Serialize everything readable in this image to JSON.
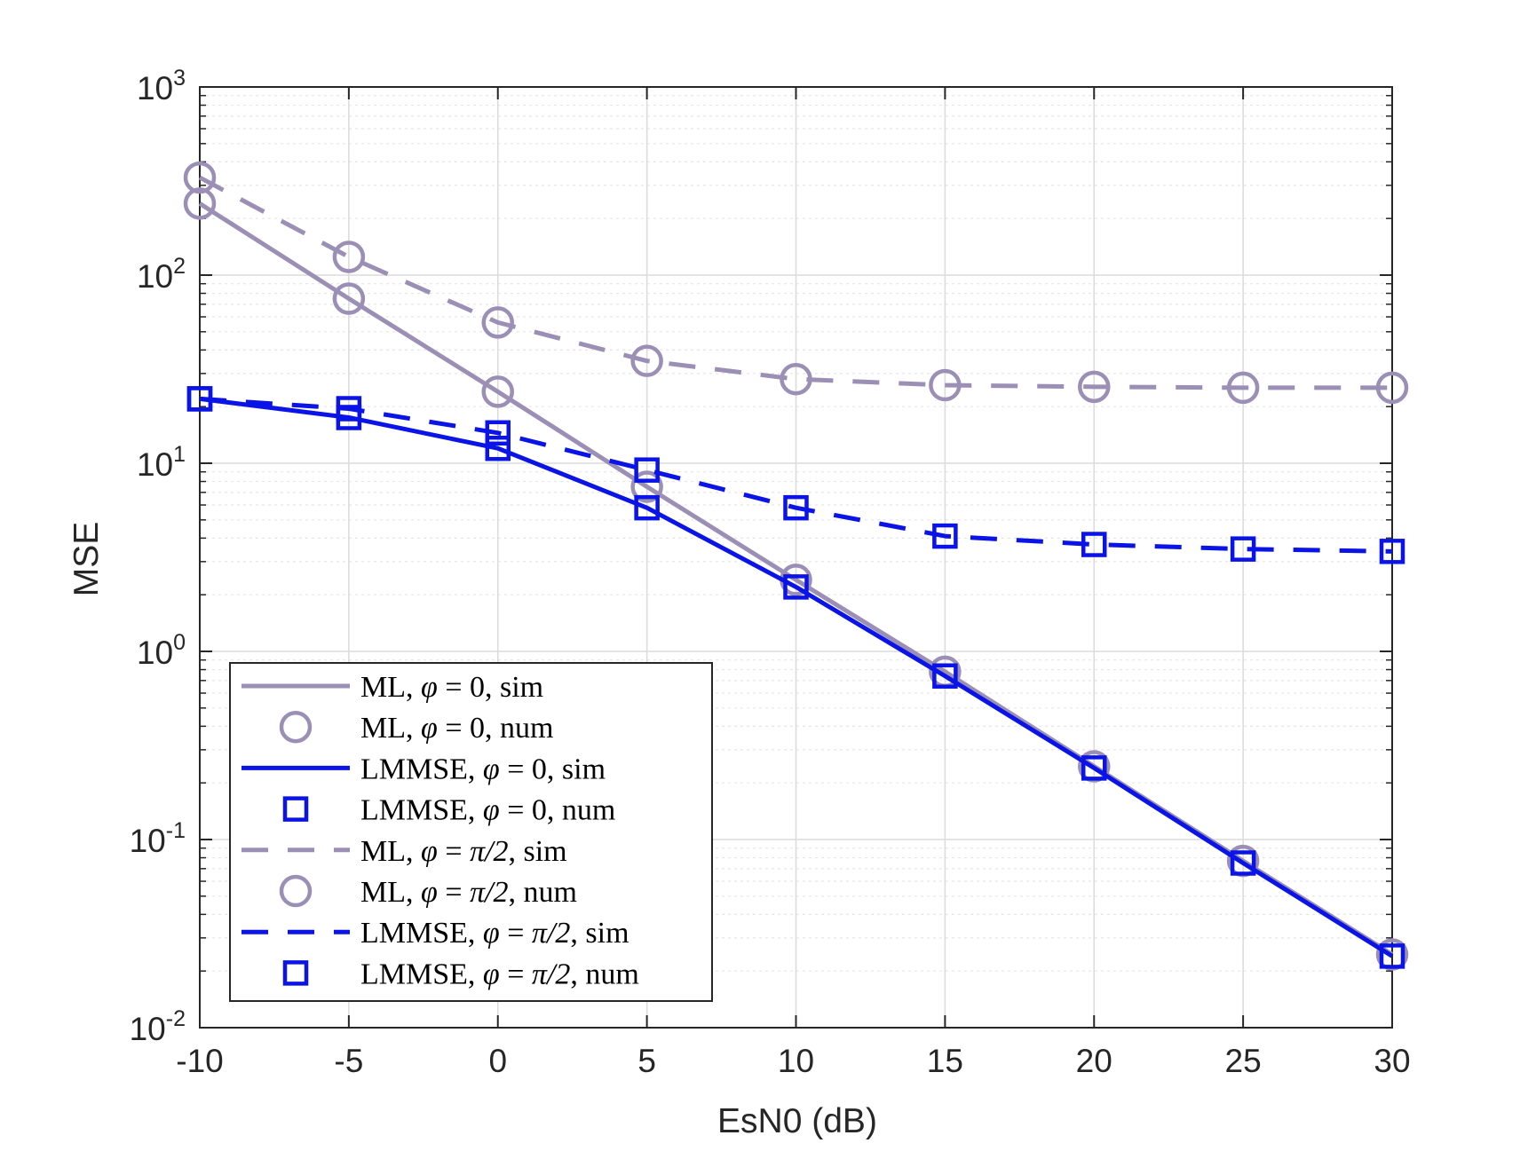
{
  "chart_data": {
    "type": "line",
    "title": "",
    "xlabel": "EsN0 (dB)",
    "ylabel": "MSE",
    "yscale": "log",
    "xlim": [
      -10,
      30
    ],
    "ylim": [
      0.01,
      1000
    ],
    "x": [
      -10,
      -5,
      0,
      5,
      10,
      15,
      20,
      25,
      30
    ],
    "x_ticks": [
      "-10",
      "-5",
      "0",
      "5",
      "10",
      "15",
      "20",
      "25",
      "30"
    ],
    "y_ticks": [
      {
        "value": 0.01,
        "base": "10",
        "exp": "-2"
      },
      {
        "value": 0.1,
        "base": "10",
        "exp": "-1"
      },
      {
        "value": 1,
        "base": "10",
        "exp": "0"
      },
      {
        "value": 10,
        "base": "10",
        "exp": "1"
      },
      {
        "value": 100,
        "base": "10",
        "exp": "2"
      },
      {
        "value": 1000,
        "base": "10",
        "exp": "3"
      }
    ],
    "grid": true,
    "minor_grid": true,
    "legend_position": "bottom-left",
    "colors": {
      "ml": "#9C8FB5",
      "lmmse": "#0A14E6",
      "axis": "#262626",
      "grid_major": "#DCDCDC",
      "grid_minor": "#E6E6E6"
    },
    "series": [
      {
        "name": "ML, φ = 0, sim",
        "color": "#9C8FB5",
        "line": "solid",
        "marker": "none",
        "values": [
          240,
          75,
          24,
          7.5,
          2.4,
          0.78,
          0.245,
          0.077,
          0.0245
        ]
      },
      {
        "name": "ML, φ = 0, num",
        "color": "#9C8FB5",
        "line": "none",
        "marker": "circle",
        "values": [
          240,
          75,
          24,
          7.5,
          2.4,
          0.78,
          0.245,
          0.077,
          0.0245
        ]
      },
      {
        "name": "LMMSE, φ = 0, sim",
        "color": "#0A14E6",
        "line": "solid",
        "marker": "none",
        "values": [
          22,
          17.5,
          12,
          5.8,
          2.2,
          0.74,
          0.24,
          0.075,
          0.024
        ]
      },
      {
        "name": "LMMSE, φ = 0, num",
        "color": "#0A14E6",
        "line": "none",
        "marker": "square",
        "values": [
          22,
          17.5,
          12,
          5.8,
          2.2,
          0.74,
          0.24,
          0.075,
          0.024
        ]
      },
      {
        "name": "ML, φ = π/2, sim",
        "color": "#9C8FB5",
        "line": "dashed",
        "marker": "none",
        "values": [
          330,
          125,
          56,
          35,
          28,
          26,
          25.5,
          25.2,
          25.2
        ]
      },
      {
        "name": "ML, φ = π/2, num",
        "color": "#9C8FB5",
        "line": "none",
        "marker": "circle",
        "values": [
          330,
          125,
          56,
          35,
          28,
          26,
          25.5,
          25.2,
          25.2
        ]
      },
      {
        "name": "LMMSE, φ = π/2, sim",
        "color": "#0A14E6",
        "line": "dashed",
        "marker": "none",
        "values": [
          22,
          19.5,
          14.5,
          9.2,
          5.8,
          4.1,
          3.7,
          3.5,
          3.4
        ]
      },
      {
        "name": "LMMSE, φ = π/2, num",
        "color": "#0A14E6",
        "line": "none",
        "marker": "square",
        "values": [
          22,
          19.5,
          14.5,
          9.2,
          5.8,
          4.1,
          3.7,
          3.5,
          3.4
        ]
      }
    ],
    "legend": [
      {
        "prefix": "ML",
        "phi": "φ",
        "equals": "=",
        "value": "0",
        "suffix": "sim",
        "series_index": 0
      },
      {
        "prefix": "ML",
        "phi": "φ",
        "equals": "=",
        "value": "0",
        "suffix": "num",
        "series_index": 1
      },
      {
        "prefix": "LMMSE",
        "phi": "φ",
        "equals": "=",
        "value": "0",
        "suffix": "sim",
        "series_index": 2
      },
      {
        "prefix": "LMMSE",
        "phi": "φ",
        "equals": "=",
        "value": "0",
        "suffix": "num",
        "series_index": 3
      },
      {
        "prefix": "ML",
        "phi": "φ",
        "equals": "=",
        "value": "π/2",
        "suffix": "sim",
        "series_index": 4
      },
      {
        "prefix": "ML",
        "phi": "φ",
        "equals": "=",
        "value": "π/2",
        "suffix": "num",
        "series_index": 5
      },
      {
        "prefix": "LMMSE",
        "phi": "φ",
        "equals": "=",
        "value": "π/2",
        "suffix": "sim",
        "series_index": 6
      },
      {
        "prefix": "LMMSE",
        "phi": "φ",
        "equals": "=",
        "value": "π/2",
        "suffix": "num",
        "series_index": 7
      }
    ]
  }
}
